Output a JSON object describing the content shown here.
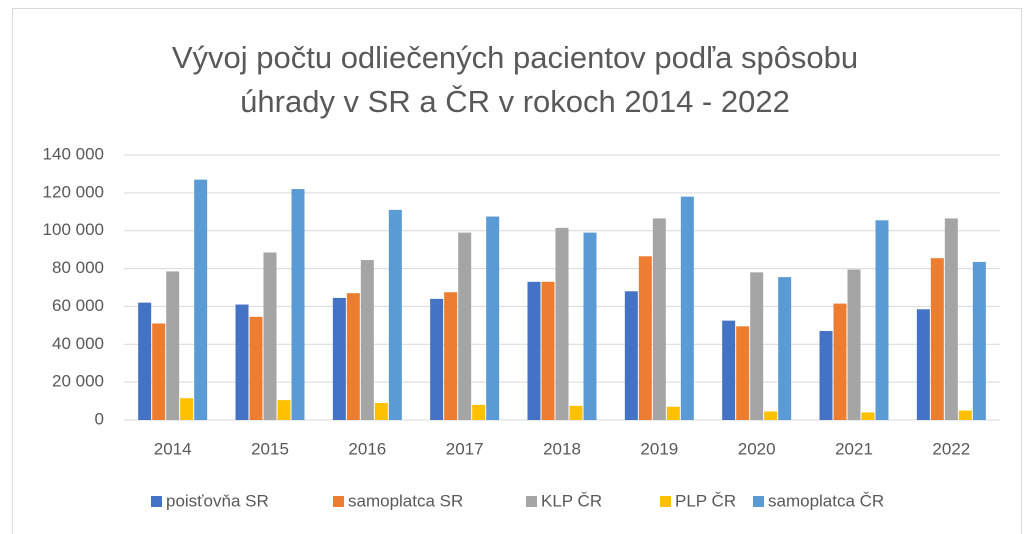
{
  "chart_data": {
    "type": "bar",
    "title": "Vývoj počtu odliečených pacientov podľa spôsobu úhrady v SR a ČR v rokoch 2014 - 2022",
    "categories": [
      "2014",
      "2015",
      "2016",
      "2017",
      "2018",
      "2019",
      "2020",
      "2021",
      "2022"
    ],
    "series": [
      {
        "name": "poisťovňa SR",
        "color": "#4472c4",
        "values": [
          62000,
          61000,
          64500,
          64000,
          73000,
          68000,
          52500,
          47000,
          58500
        ]
      },
      {
        "name": "samoplatca SR",
        "color": "#ed7d31",
        "values": [
          51000,
          54500,
          67000,
          67500,
          73000,
          86500,
          49500,
          61500,
          85500
        ]
      },
      {
        "name": "KLP ČR",
        "color": "#a5a5a5",
        "values": [
          78500,
          88500,
          84500,
          99000,
          101500,
          106500,
          78000,
          79500,
          106500
        ]
      },
      {
        "name": "PLP ČR",
        "color": "#ffc000",
        "values": [
          11500,
          10500,
          9000,
          8000,
          7500,
          7000,
          4500,
          4000,
          5000
        ]
      },
      {
        "name": "samoplatca ČR",
        "color": "#5b9bd5",
        "values": [
          127000,
          122000,
          111000,
          107500,
          99000,
          118000,
          75500,
          105500,
          83500
        ]
      }
    ],
    "ylim": [
      0,
      140000
    ],
    "yticks": [
      0,
      {
        "value": 20000,
        "label": "20 000"
      },
      {
        "value": 40000,
        "label": "40 000"
      },
      {
        "value": 60000,
        "label": "60 000"
      },
      {
        "value": 80000,
        "label": "80 000"
      },
      {
        "value": 100000,
        "label": "100 000"
      },
      {
        "value": 120000,
        "label": "120 000"
      },
      {
        "value": 140000,
        "label": "140 000"
      }
    ],
    "grid": true,
    "legend": "bottom"
  }
}
